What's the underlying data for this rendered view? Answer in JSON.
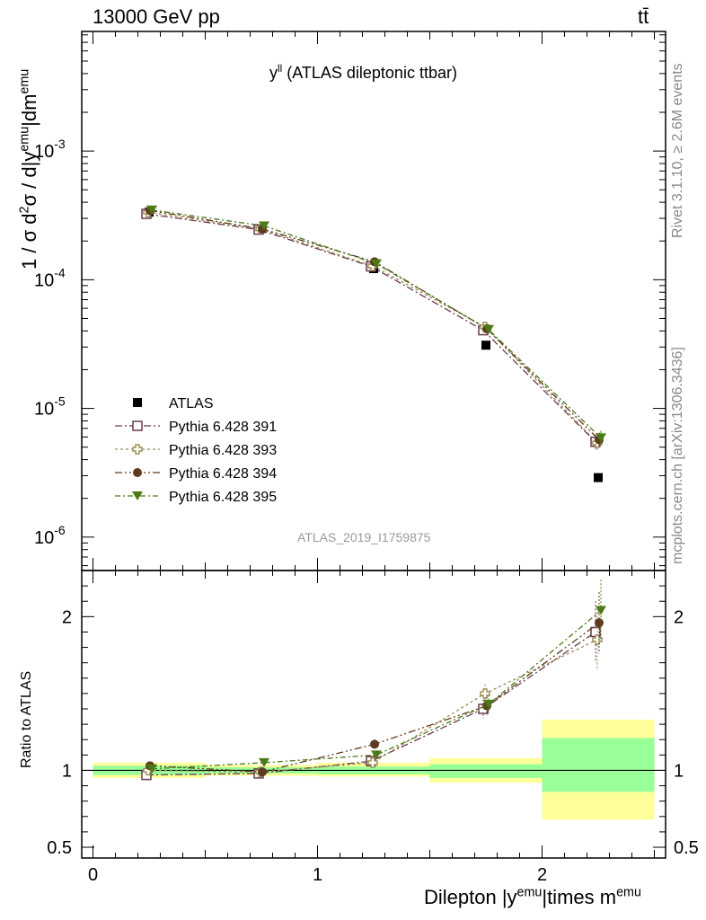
{
  "header": {
    "left": "13000 GeV pp",
    "right": "tt̄"
  },
  "side_text": {
    "rivet": "Rivet 3.1.10, ≥ 2.6M events",
    "mcplots": "mcplots.cern.ch [arXiv:1306.3436]"
  },
  "main_plot": {
    "title_sym": "y",
    "title_sup": "ll",
    "title_rest": " (ATLAS dileptonic ttbar)",
    "watermark": "ATLAS_2019_I1759875",
    "ylabel_parts": [
      "1 / σ  d",
      "2",
      "σ / d|y",
      "emu",
      "|dm",
      "emu"
    ]
  },
  "ratio_plot": {
    "ylabel": "Ratio to ATLAS"
  },
  "xaxis": {
    "label_parts": [
      "Dilepton |y",
      "emu",
      "|times m",
      "emu"
    ]
  },
  "colors": {
    "atlas": "#000000",
    "p391": "#6b3a4e",
    "p393": "#9a8a52",
    "p394": "#5e3b1f",
    "p395": "#4c7a17",
    "band_inner": "#99ff99",
    "band_outer": "#ffff99"
  },
  "chart_data": [
    {
      "type": "scatter",
      "panel": "main",
      "scale": "log",
      "xlim": [
        -0.05,
        2.55
      ],
      "ylim": [
        5.5e-07,
        0.0085
      ],
      "x_ticks": [
        "0",
        "1",
        "2"
      ],
      "y_ticks": [
        "10^-6",
        "10^-5",
        "10^-4",
        "10^-3"
      ],
      "bins": [
        [
          0,
          0.5
        ],
        [
          0.5,
          1.0
        ],
        [
          1.0,
          1.5
        ],
        [
          1.5,
          2.0
        ],
        [
          2.0,
          2.5
        ]
      ],
      "x": [
        0.25,
        0.75,
        1.25,
        1.75,
        2.25
      ],
      "series": [
        {
          "name": "ATLAS",
          "marker": "filled-square",
          "color": "#000000",
          "values": [
            0.000335,
            0.00025,
            0.000122,
            3.1e-05,
            2.9e-06
          ]
        },
        {
          "name": "Pythia 6.428 391",
          "marker": "open-square",
          "color": "#6b3a4e",
          "values": [
            0.000325,
            0.000245,
            0.000127,
            4.05e-05,
            5.5e-06
          ]
        },
        {
          "name": "Pythia 6.428 393",
          "marker": "open-cross",
          "color": "#9a8a52",
          "values": [
            0.000335,
            0.000248,
            0.000128,
            4.3e-05,
            5.4e-06
          ]
        },
        {
          "name": "Pythia 6.428 394",
          "marker": "filled-circle",
          "color": "#5e3b1f",
          "values": [
            0.000345,
            0.000248,
            0.000138,
            4.15e-05,
            5.7e-06
          ]
        },
        {
          "name": "Pythia 6.428 395",
          "marker": "filled-triangle-down",
          "color": "#4c7a17",
          "values": [
            0.000348,
            0.000262,
            0.000133,
            4.1e-05,
            5.9e-06
          ]
        }
      ]
    },
    {
      "type": "scatter",
      "panel": "ratio",
      "xlim": [
        -0.05,
        2.55
      ],
      "ylim": [
        0.43,
        2.3
      ],
      "y_ticks": [
        "0.5",
        "1",
        "2"
      ],
      "x": [
        0.25,
        0.75,
        1.25,
        1.75,
        2.25
      ],
      "bands": {
        "inner": [
          [
            0.97,
            1.03
          ],
          [
            0.98,
            1.02
          ],
          [
            0.975,
            1.025
          ],
          [
            0.95,
            1.04
          ],
          [
            0.86,
            1.21
          ]
        ],
        "outer": [
          [
            0.95,
            1.05
          ],
          [
            0.965,
            1.035
          ],
          [
            0.96,
            1.05
          ],
          [
            0.92,
            1.08
          ],
          [
            0.68,
            1.33
          ]
        ]
      },
      "series": [
        {
          "name": "Pythia 6.428 391",
          "values": [
            0.97,
            0.98,
            1.06,
            1.4,
            1.9
          ],
          "err": [
            0.02,
            0.02,
            0.03,
            0.06,
            0.2
          ]
        },
        {
          "name": "Pythia 6.428 393",
          "values": [
            1.0,
            0.99,
            1.05,
            1.5,
            1.85
          ],
          "err": [
            0.02,
            0.02,
            0.03,
            0.06,
            0.2
          ]
        },
        {
          "name": "Pythia 6.428 394",
          "values": [
            1.03,
            0.99,
            1.17,
            1.42,
            1.96
          ],
          "err": [
            0.02,
            0.02,
            0.03,
            0.06,
            0.2
          ]
        },
        {
          "name": "Pythia 6.428 395",
          "values": [
            1.01,
            1.05,
            1.1,
            1.43,
            2.04
          ],
          "err": [
            0.02,
            0.02,
            0.03,
            0.06,
            0.2
          ]
        }
      ]
    }
  ]
}
